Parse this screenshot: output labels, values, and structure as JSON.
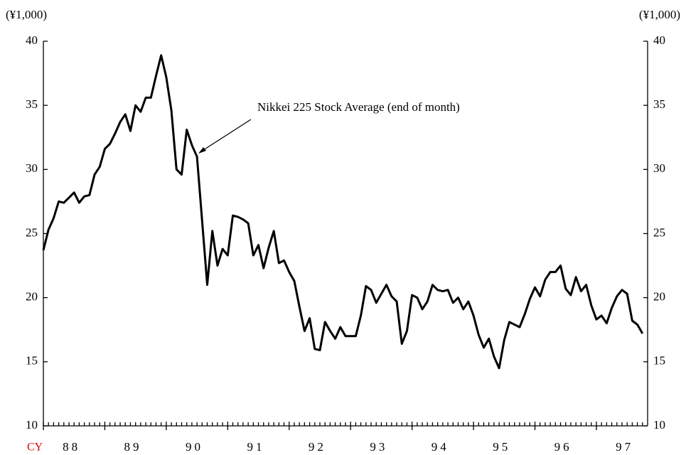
{
  "chart_data": {
    "type": "line",
    "annotation": "Nikkei 225 Stock Average (end of month)",
    "y_label": "(¥1,000)",
    "y2_label": "(¥1,000)",
    "x_label": "CY",
    "categories": [
      "88",
      null,
      null,
      null,
      null,
      null,
      null,
      null,
      null,
      null,
      null,
      null,
      "89",
      null,
      null,
      null,
      null,
      null,
      null,
      null,
      null,
      null,
      null,
      null,
      "90",
      null,
      null,
      null,
      null,
      null,
      null,
      null,
      null,
      null,
      null,
      null,
      "91",
      null,
      null,
      null,
      null,
      null,
      null,
      null,
      null,
      null,
      null,
      null,
      "92",
      null,
      null,
      null,
      null,
      null,
      null,
      null,
      null,
      null,
      null,
      null,
      "93",
      null,
      null,
      null,
      null,
      null,
      null,
      null,
      null,
      null,
      null,
      null,
      "94",
      null,
      null,
      null,
      null,
      null,
      null,
      null,
      null,
      null,
      null,
      null,
      "95",
      null,
      null,
      null,
      null,
      null,
      null,
      null,
      null,
      null,
      null,
      null,
      "96",
      null,
      null,
      null,
      null,
      null,
      null,
      null,
      null,
      null,
      null,
      null,
      "97",
      null,
      null,
      null,
      null,
      null,
      null,
      null,
      null,
      null
    ],
    "values": [
      23.7,
      25.3,
      26.2,
      27.5,
      27.4,
      27.8,
      28.2,
      27.4,
      27.9,
      28.0,
      29.6,
      30.2,
      31.6,
      32.0,
      32.8,
      33.7,
      34.3,
      33.0,
      35.0,
      34.5,
      35.6,
      35.6,
      37.3,
      38.9,
      37.2,
      34.6,
      30.0,
      29.6,
      33.1,
      31.9,
      31.0,
      26.0,
      21.0,
      25.2,
      22.5,
      23.8,
      23.3,
      26.4,
      26.3,
      26.1,
      25.8,
      23.3,
      24.1,
      22.3,
      23.9,
      25.2,
      22.7,
      22.9,
      22.0,
      21.3,
      19.3,
      17.4,
      18.4,
      16.0,
      15.9,
      18.1,
      17.4,
      16.8,
      17.7,
      17.0,
      17.0,
      17.0,
      18.6,
      20.9,
      20.6,
      19.6,
      20.3,
      21.0,
      20.1,
      19.7,
      16.4,
      17.4,
      20.2,
      20.0,
      19.1,
      19.7,
      21.0,
      20.6,
      20.5,
      20.6,
      19.6,
      20.0,
      19.1,
      19.7,
      18.6,
      17.1,
      16.1,
      16.8,
      15.4,
      14.5,
      16.7,
      18.1,
      17.9,
      17.7,
      18.7,
      19.9,
      20.8,
      20.1,
      21.4,
      22.0,
      22.0,
      22.5,
      20.7,
      20.2,
      21.6,
      20.5,
      21.0,
      19.4,
      18.3,
      18.6,
      18.0,
      19.2,
      20.1,
      20.6,
      20.3,
      18.2,
      17.9,
      17.2
    ],
    "color": "#000000",
    "ylim": [
      10,
      40
    ],
    "yticks": [
      10,
      15,
      20,
      25,
      30,
      35,
      40
    ],
    "y2lim": [
      10,
      40
    ],
    "y2ticks": [
      10,
      15,
      20,
      25,
      30,
      35,
      40
    ],
    "grid": false
  }
}
